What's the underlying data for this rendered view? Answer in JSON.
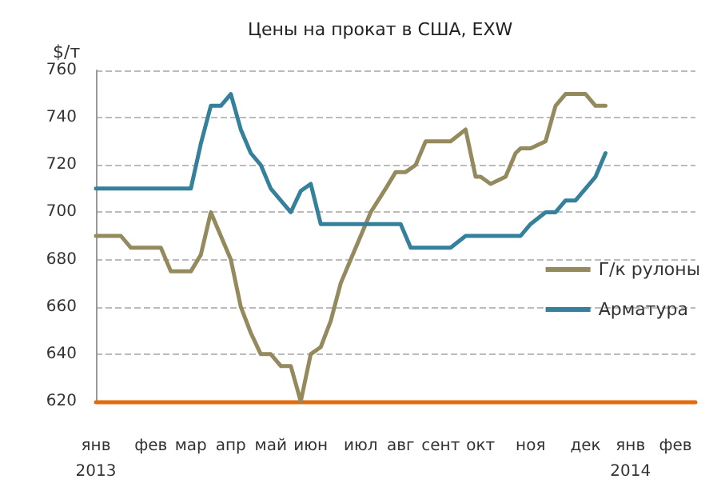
{
  "chart_data": {
    "type": "line",
    "title": "Цены на прокат в США, EXW",
    "ylabel": "$/т",
    "categories": [
      "янв\n2013",
      null,
      null,
      null,
      null,
      null,
      null,
      null,
      null,
      null,
      null,
      "фев",
      null,
      null,
      null,
      null,
      null,
      null,
      null,
      "мар",
      null,
      null,
      null,
      null,
      null,
      null,
      null,
      "апр",
      null,
      null,
      null,
      null,
      null,
      null,
      null,
      "май",
      null,
      null,
      null,
      null,
      null,
      null,
      null,
      "июн",
      null,
      null,
      null,
      null,
      null,
      null,
      null,
      null,
      null,
      "июл",
      null,
      null,
      null,
      null,
      null,
      null,
      null,
      "авг",
      null,
      null,
      null,
      null,
      null,
      null,
      null,
      "сент",
      null,
      null,
      null,
      null,
      null,
      null,
      null,
      "окт",
      null,
      null,
      null,
      null,
      null,
      null,
      null,
      null,
      null,
      "ноя",
      null,
      null,
      null,
      null,
      null,
      null,
      null,
      null,
      null,
      null,
      "дек",
      null,
      null,
      null,
      null,
      null,
      null,
      null,
      null,
      "янв\n2014",
      null,
      null,
      null,
      null,
      null,
      null,
      null,
      null,
      "фев",
      null,
      null,
      null,
      null
    ],
    "series": [
      {
        "name": "Г/к рулоны",
        "color": "#948a5e",
        "values": [
          690,
          null,
          null,
          null,
          null,
          690,
          null,
          685,
          null,
          null,
          null,
          null,
          null,
          685,
          null,
          675,
          null,
          null,
          null,
          675,
          null,
          682,
          null,
          700,
          null,
          690,
          null,
          680,
          null,
          660,
          null,
          649,
          null,
          640,
          null,
          640,
          null,
          635,
          null,
          635,
          null,
          620,
          null,
          640,
          null,
          643,
          null,
          654,
          null,
          670,
          null,
          680,
          null,
          690,
          null,
          700,
          null,
          null,
          710,
          null,
          717,
          null,
          717,
          null,
          720,
          null,
          730,
          null,
          null,
          null,
          null,
          730,
          null,
          null,
          735,
          null,
          715,
          715,
          null,
          712,
          null,
          null,
          715,
          null,
          725,
          727,
          null,
          727,
          null,
          null,
          730,
          null,
          745,
          null,
          750,
          null,
          null,
          null,
          750,
          null,
          745,
          null,
          745,
          null,
          null,
          null,
          null,
          null,
          null,
          null,
          null,
          null,
          null,
          null,
          null,
          null,
          null,
          null,
          null,
          null,
          null
        ]
      },
      {
        "name": "Арматура",
        "color": "#35809b",
        "values": [
          710,
          null,
          null,
          null,
          null,
          null,
          null,
          null,
          null,
          null,
          null,
          null,
          null,
          null,
          null,
          null,
          null,
          null,
          null,
          710,
          null,
          729,
          null,
          745,
          null,
          745,
          null,
          750,
          null,
          735,
          null,
          725,
          null,
          720,
          null,
          710,
          null,
          705,
          null,
          700,
          null,
          709,
          null,
          712,
          null,
          695,
          null,
          null,
          null,
          null,
          null,
          null,
          null,
          null,
          null,
          null,
          null,
          null,
          null,
          null,
          null,
          695,
          null,
          685,
          null,
          null,
          null,
          null,
          null,
          null,
          null,
          685,
          null,
          null,
          690,
          null,
          null,
          null,
          null,
          null,
          null,
          null,
          null,
          null,
          null,
          690,
          null,
          695,
          null,
          null,
          700,
          null,
          700,
          null,
          705,
          null,
          705,
          null,
          710,
          null,
          715,
          null,
          725,
          null,
          null,
          null,
          null,
          null,
          null,
          null,
          null,
          null,
          null,
          null,
          null,
          null,
          null,
          null,
          null,
          null,
          null
        ]
      }
    ],
    "ylim": [
      620,
      760
    ],
    "yticks": [
      620,
      640,
      660,
      680,
      700,
      720,
      740,
      760
    ],
    "grid": "y",
    "legend": "right",
    "marker": "none",
    "line_style": "solid"
  }
}
